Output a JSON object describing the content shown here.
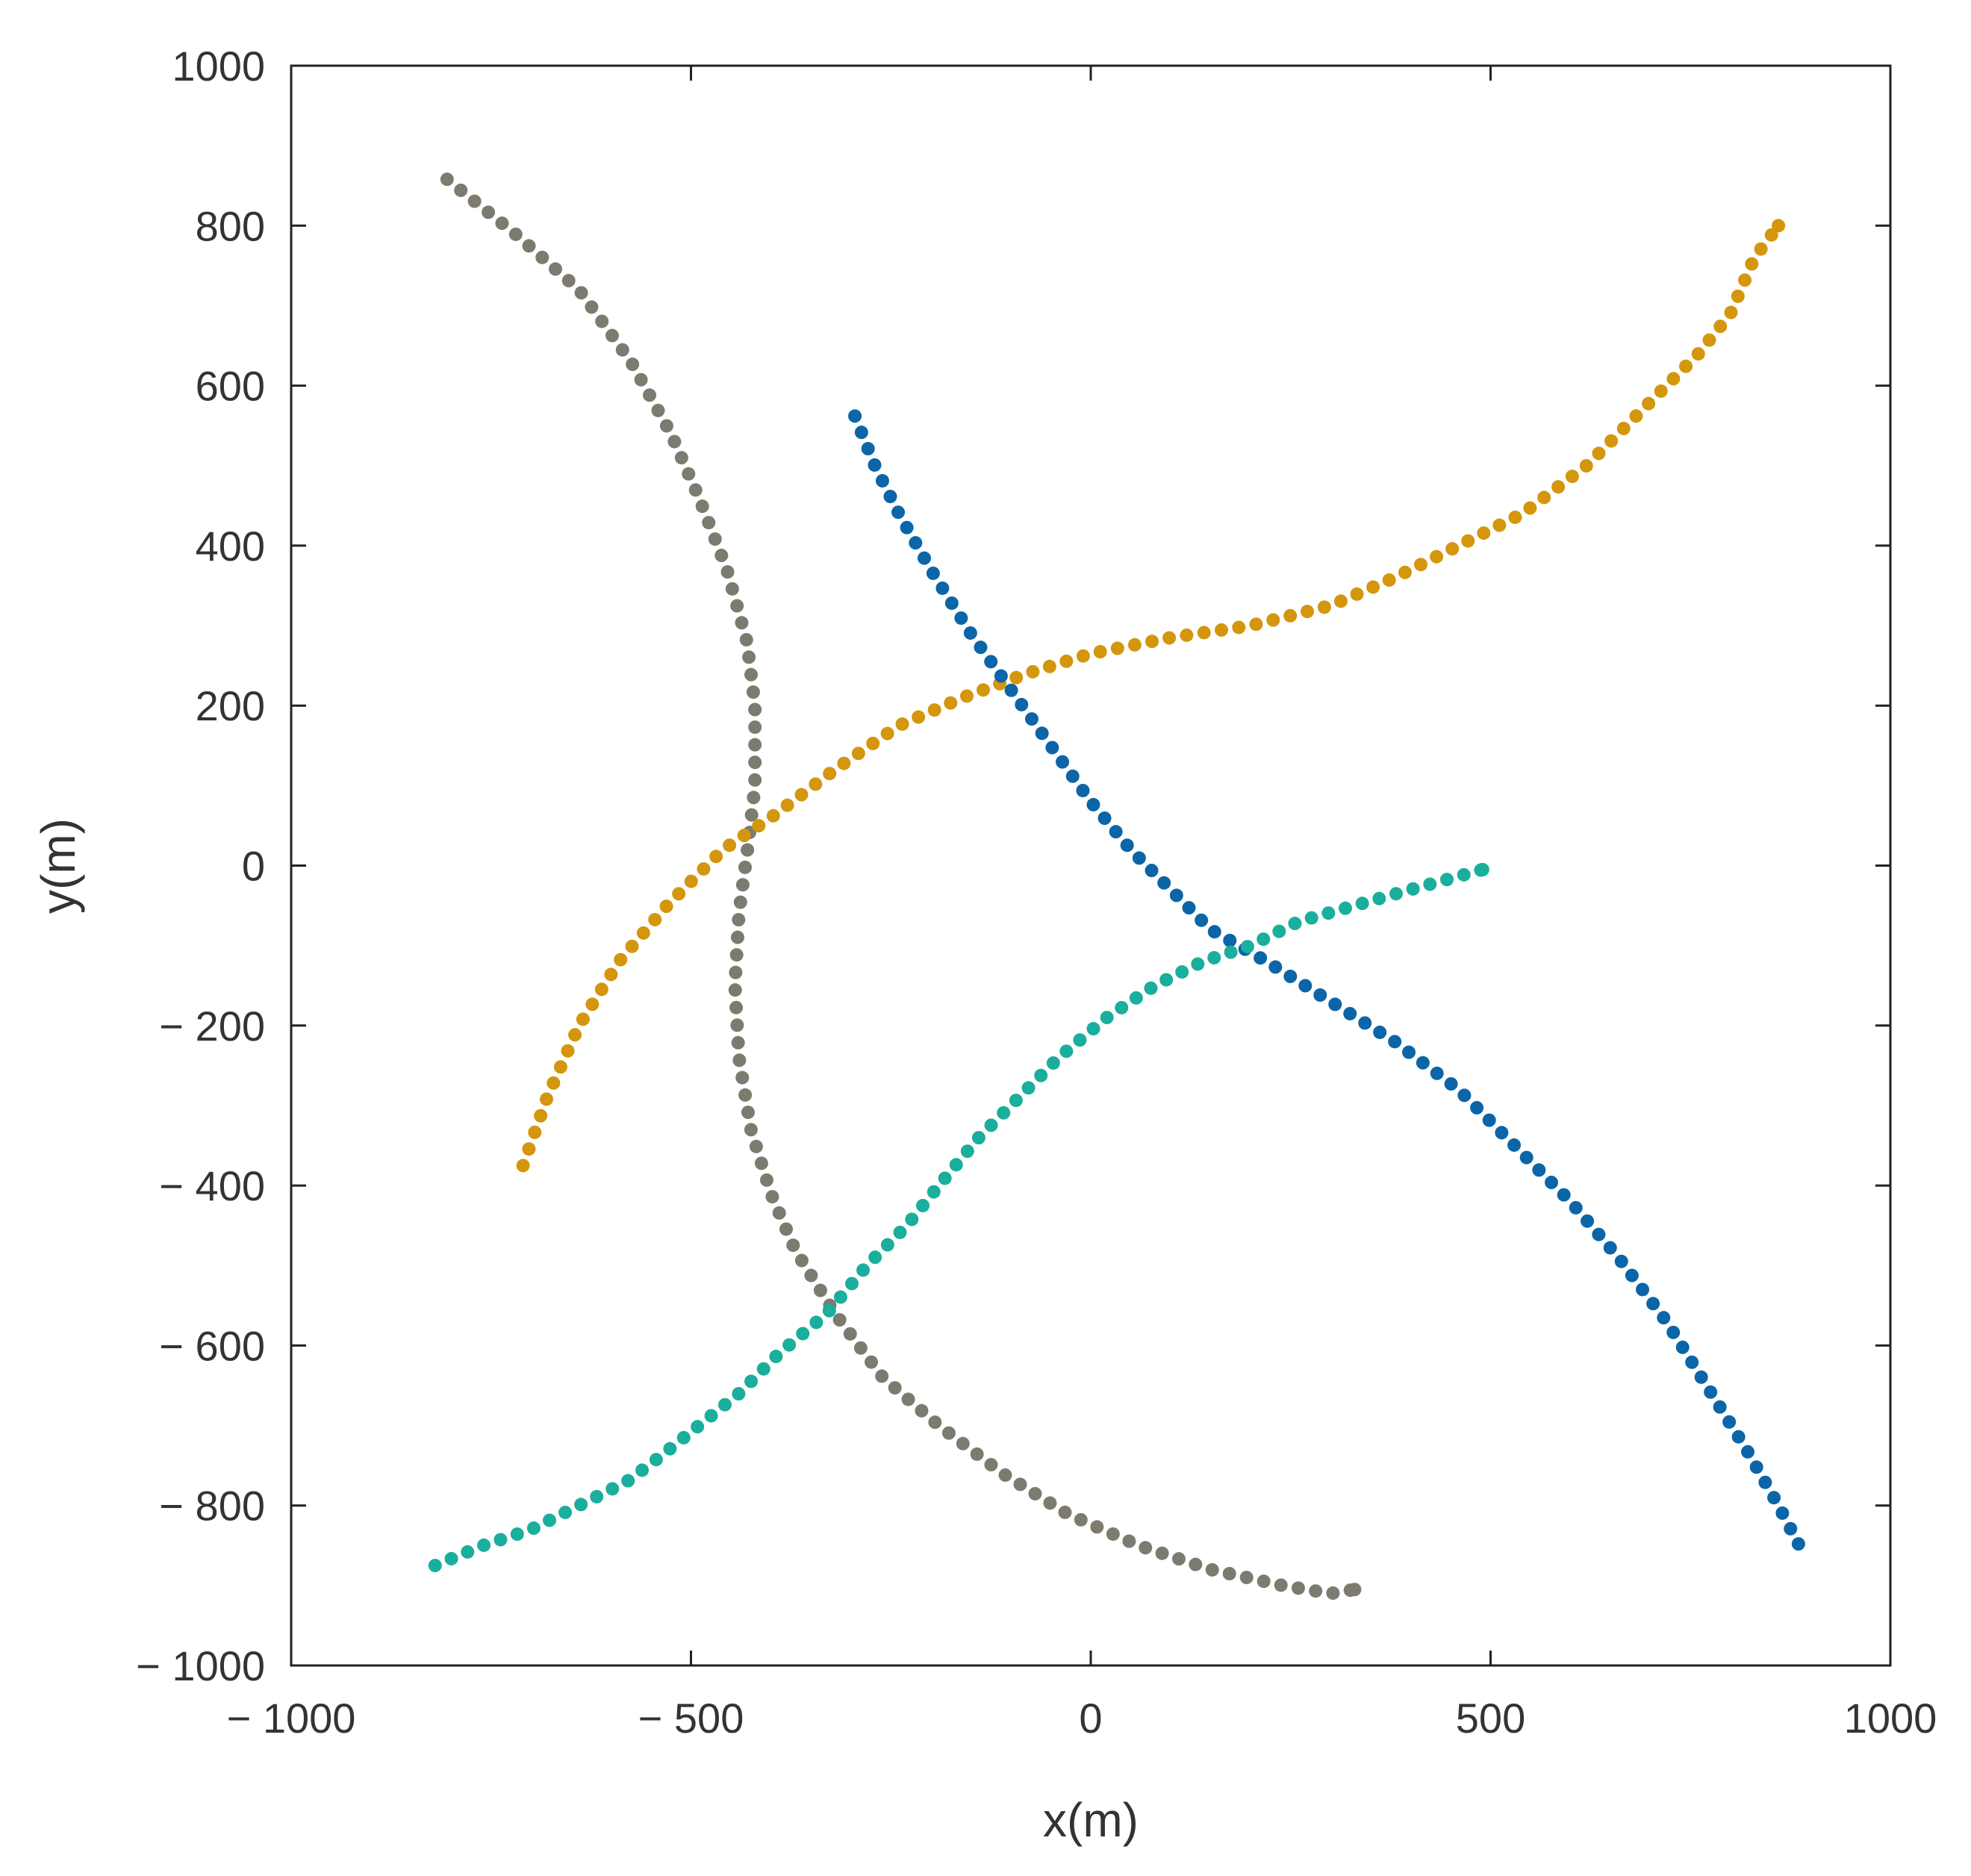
{
  "chart_data": {
    "type": "scatter",
    "title": "",
    "xlabel": "x(m)",
    "ylabel": "y(m)",
    "xlim": [
      -1000,
      1000
    ],
    "ylim": [
      -1000,
      1000
    ],
    "xticks": [
      -1000,
      -500,
      0,
      500,
      1000
    ],
    "yticks": [
      -1000,
      -800,
      -600,
      -400,
      -200,
      0,
      200,
      400,
      600,
      800,
      1000
    ],
    "xtick_labels": [
      "− 1000",
      "− 500",
      "0",
      "500",
      "1000"
    ],
    "ytick_labels": [
      "− 1000",
      "− 800",
      "− 600",
      "− 400",
      "− 200",
      "0",
      "200",
      "400",
      "600",
      "800",
      "1000"
    ],
    "grid": false,
    "legend": "none",
    "series": [
      {
        "color": "#7d7b6f",
        "points": [
          [
            -805,
            858
          ],
          [
            -720,
            790
          ],
          [
            -640,
            720
          ],
          [
            -575,
            630
          ],
          [
            -525,
            540
          ],
          [
            -490,
            460
          ],
          [
            -455,
            370
          ],
          [
            -430,
            280
          ],
          [
            -420,
            200
          ],
          [
            -420,
            100
          ],
          [
            -428,
            30
          ],
          [
            -440,
            -60
          ],
          [
            -445,
            -150
          ],
          [
            -440,
            -240
          ],
          [
            -425,
            -330
          ],
          [
            -400,
            -410
          ],
          [
            -370,
            -480
          ],
          [
            -320,
            -560
          ],
          [
            -260,
            -640
          ],
          [
            -190,
            -700
          ],
          [
            -110,
            -760
          ],
          [
            -30,
            -810
          ],
          [
            60,
            -850
          ],
          [
            150,
            -880
          ],
          [
            240,
            -900
          ],
          [
            300,
            -910
          ],
          [
            330,
            -905
          ]
        ]
      },
      {
        "color": "#d4960c",
        "points": [
          [
            -710,
            -375
          ],
          [
            -680,
            -290
          ],
          [
            -640,
            -200
          ],
          [
            -590,
            -120
          ],
          [
            -530,
            -50
          ],
          [
            -460,
            20
          ],
          [
            -400,
            60
          ],
          [
            -320,
            120
          ],
          [
            -240,
            175
          ],
          [
            -160,
            210
          ],
          [
            -80,
            240
          ],
          [
            0,
            265
          ],
          [
            100,
            285
          ],
          [
            200,
            300
          ],
          [
            300,
            325
          ],
          [
            380,
            360
          ],
          [
            460,
            400
          ],
          [
            540,
            440
          ],
          [
            620,
            500
          ],
          [
            700,
            580
          ],
          [
            760,
            640
          ],
          [
            800,
            690
          ],
          [
            830,
            760
          ],
          [
            860,
            800
          ]
        ]
      },
      {
        "color": "#0b65a8",
        "points": [
          [
            -295,
            562
          ],
          [
            -270,
            500
          ],
          [
            -240,
            440
          ],
          [
            -200,
            370
          ],
          [
            -150,
            290
          ],
          [
            -100,
            220
          ],
          [
            -50,
            150
          ],
          [
            0,
            80
          ],
          [
            50,
            20
          ],
          [
            100,
            -30
          ],
          [
            150,
            -80
          ],
          [
            220,
            -120
          ],
          [
            300,
            -170
          ],
          [
            380,
            -220
          ],
          [
            460,
            -280
          ],
          [
            530,
            -350
          ],
          [
            600,
            -420
          ],
          [
            660,
            -490
          ],
          [
            720,
            -570
          ],
          [
            770,
            -650
          ],
          [
            820,
            -730
          ],
          [
            860,
            -800
          ],
          [
            885,
            -848
          ]
        ]
      },
      {
        "color": "#1aae9c",
        "points": [
          [
            -820,
            -875
          ],
          [
            -760,
            -850
          ],
          [
            -700,
            -830
          ],
          [
            -640,
            -800
          ],
          [
            -580,
            -770
          ],
          [
            -540,
            -740
          ],
          [
            -490,
            -700
          ],
          [
            -440,
            -660
          ],
          [
            -390,
            -610
          ],
          [
            -330,
            -560
          ],
          [
            -280,
            -500
          ],
          [
            -230,
            -450
          ],
          [
            -190,
            -400
          ],
          [
            -140,
            -340
          ],
          [
            -90,
            -290
          ],
          [
            -40,
            -240
          ],
          [
            20,
            -190
          ],
          [
            80,
            -150
          ],
          [
            140,
            -120
          ],
          [
            200,
            -100
          ],
          [
            260,
            -70
          ],
          [
            330,
            -50
          ],
          [
            400,
            -30
          ],
          [
            490,
            -5
          ]
        ]
      }
    ]
  }
}
